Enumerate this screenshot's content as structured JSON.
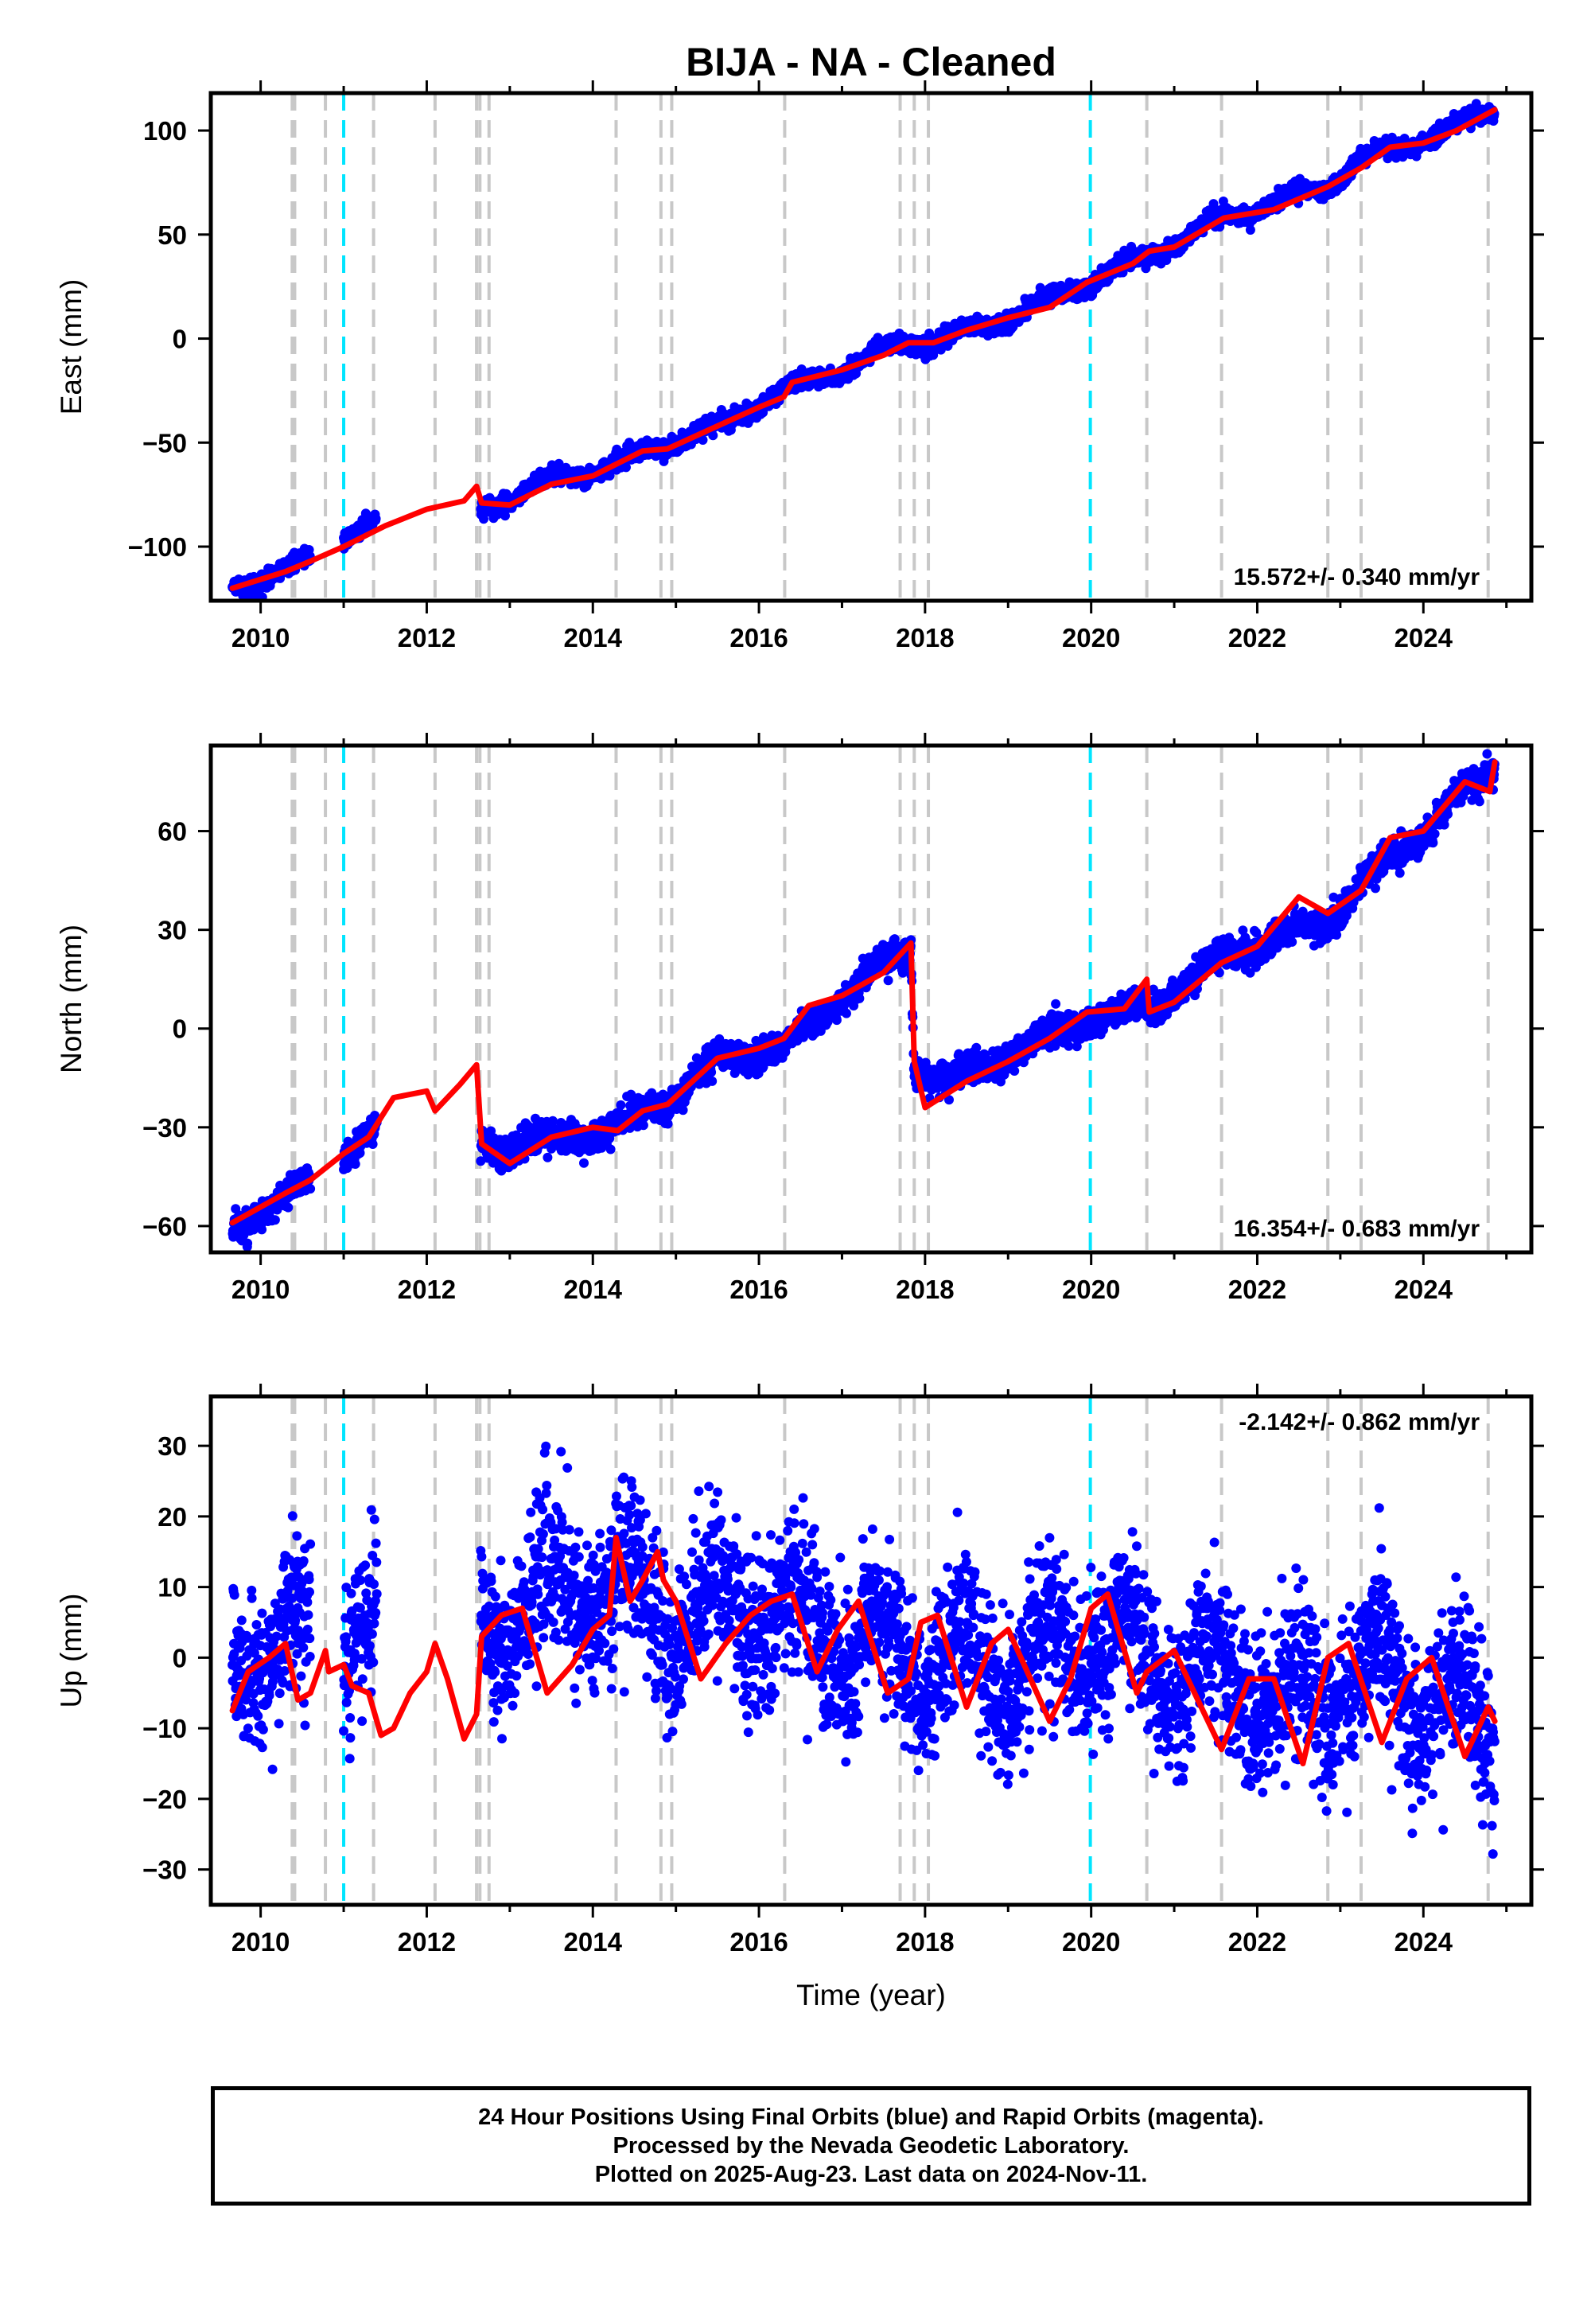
{
  "title": "BIJA  - NA - Cleaned",
  "x_axis_label": "Time (year)",
  "x_ticks": [
    "2010",
    "2012",
    "2014",
    "2016",
    "2018",
    "2020",
    "2022",
    "2024"
  ],
  "colors": {
    "data_points": "#0000ff",
    "model_line": "#ff0000",
    "event_lines": "#c8c8c8",
    "cyan_lines": "#00e5ff"
  },
  "footer": {
    "line1": "24 Hour Positions Using Final Orbits (blue) and Rapid Orbits (magenta).",
    "line2": "Processed by the Nevada Geodetic Laboratory.",
    "line3": "Plotted on 2025-Aug-23. Last data on 2024-Nov-11."
  },
  "chart_data": [
    {
      "type": "scatter",
      "panel": "east",
      "ylabel": "East (mm)",
      "xlim": [
        2009.4,
        2025.3
      ],
      "ylim": [
        -126,
        118
      ],
      "y_ticks": [
        100,
        50,
        0,
        -50,
        -100
      ],
      "rate_label": "15.572+/- 0.340 mm/yr",
      "rate_position": "bottom-right",
      "grid": false,
      "event_lines_gray": [
        2010.38,
        2010.41,
        2010.78,
        2011.36,
        2012.1,
        2012.6,
        2012.64,
        2012.75,
        2014.28,
        2014.82,
        2014.95,
        2016.31,
        2017.7,
        2017.87,
        2018.04,
        2020.67,
        2021.57,
        2022.85,
        2023.25,
        2024.78
      ],
      "event_lines_cyan": [
        2011.0,
        2019.99
      ],
      "series": [
        {
          "kind": "points",
          "segments": [
            [
              2009.66,
              2010.6
            ],
            [
              2011.0,
              2011.4
            ],
            [
              2012.65,
              2024.86
            ]
          ],
          "trend": [
            [
              2009.66,
              -120
            ],
            [
              2010.6,
              -107
            ],
            [
              2011.0,
              -95
            ],
            [
              2011.4,
              -89
            ],
            [
              2012.65,
              -82
            ],
            [
              2013.5,
              -68
            ],
            [
              2014.3,
              -60
            ],
            [
              2014.9,
              -50
            ],
            [
              2015.5,
              -42
            ],
            [
              2016.3,
              -25
            ],
            [
              2017.0,
              -15
            ],
            [
              2017.7,
              -2
            ],
            [
              2018.1,
              -2
            ],
            [
              2019.0,
              10
            ],
            [
              2019.95,
              27
            ],
            [
              2020.7,
              40
            ],
            [
              2021.6,
              58
            ],
            [
              2022.85,
              73
            ],
            [
              2023.25,
              86
            ],
            [
              2023.8,
              92
            ],
            [
              2024.86,
              110
            ]
          ],
          "seasonal_amp": 2.5,
          "noise": 2.0
        },
        {
          "kind": "line",
          "name": "",
          "points": [
            [
              2009.66,
              -120
            ],
            [
              2010.3,
              -112
            ],
            [
              2010.6,
              -107
            ],
            [
              2011.0,
              -100
            ],
            [
              2011.5,
              -90
            ],
            [
              2012.0,
              -82
            ],
            [
              2012.45,
              -78
            ],
            [
              2012.6,
              -71
            ],
            [
              2012.66,
              -79
            ],
            [
              2013.0,
              -80
            ],
            [
              2013.5,
              -70
            ],
            [
              2014.0,
              -66
            ],
            [
              2014.3,
              -60
            ],
            [
              2014.6,
              -54
            ],
            [
              2014.9,
              -53
            ],
            [
              2015.5,
              -42
            ],
            [
              2016.0,
              -33
            ],
            [
              2016.3,
              -28
            ],
            [
              2016.4,
              -21
            ],
            [
              2017.0,
              -15
            ],
            [
              2017.5,
              -8
            ],
            [
              2017.8,
              -2
            ],
            [
              2018.1,
              -2
            ],
            [
              2018.5,
              4
            ],
            [
              2019.0,
              10
            ],
            [
              2019.5,
              15
            ],
            [
              2019.95,
              27
            ],
            [
              2020.5,
              36
            ],
            [
              2020.7,
              42
            ],
            [
              2021.0,
              44
            ],
            [
              2021.6,
              58
            ],
            [
              2022.2,
              62
            ],
            [
              2022.85,
              73
            ],
            [
              2023.25,
              82
            ],
            [
              2023.6,
              92
            ],
            [
              2024.0,
              94
            ],
            [
              2024.4,
              100
            ],
            [
              2024.86,
              110
            ]
          ]
        }
      ]
    },
    {
      "type": "scatter",
      "panel": "north",
      "ylabel": "North (mm)",
      "xlim": [
        2009.4,
        2025.3
      ],
      "ylim": [
        -68,
        86
      ],
      "y_ticks": [
        60,
        30,
        0,
        -30,
        -60
      ],
      "rate_label": "16.354+/- 0.683 mm/yr",
      "rate_position": "bottom-right",
      "grid": false,
      "event_lines_gray": [
        2010.38,
        2010.41,
        2010.78,
        2011.36,
        2012.1,
        2012.6,
        2012.64,
        2012.75,
        2014.28,
        2014.82,
        2014.95,
        2016.31,
        2017.7,
        2017.87,
        2018.04,
        2020.67,
        2021.57,
        2022.85,
        2023.25,
        2024.78
      ],
      "event_lines_cyan": [
        2011.0,
        2019.99
      ],
      "series": [
        {
          "kind": "points",
          "segments": [
            [
              2009.66,
              2010.6
            ],
            [
              2011.0,
              2011.4
            ],
            [
              2012.65,
              2024.86
            ]
          ],
          "trend": [
            [
              2009.66,
              -61
            ],
            [
              2010.6,
              -46
            ],
            [
              2011.0,
              -38
            ],
            [
              2011.4,
              -31
            ],
            [
              2012.65,
              -36
            ],
            [
              2013.5,
              -34
            ],
            [
              2014.3,
              -30
            ],
            [
              2014.9,
              -22
            ],
            [
              2015.5,
              -9
            ],
            [
              2016.3,
              -6
            ],
            [
              2017.0,
              10
            ],
            [
              2017.83,
              25
            ],
            [
              2017.87,
              -12
            ],
            [
              2018.3,
              -16
            ],
            [
              2019.0,
              -8
            ],
            [
              2019.95,
              3
            ],
            [
              2020.7,
              6
            ],
            [
              2021.6,
              22
            ],
            [
              2022.85,
              32
            ],
            [
              2023.25,
              44
            ],
            [
              2024.0,
              60
            ],
            [
              2024.86,
              80
            ]
          ],
          "seasonal_amp": 2.0,
          "noise": 2.2
        },
        {
          "kind": "line",
          "name": "",
          "points": [
            [
              2009.66,
              -59
            ],
            [
              2010.3,
              -50
            ],
            [
              2010.6,
              -46
            ],
            [
              2011.0,
              -38
            ],
            [
              2011.3,
              -33
            ],
            [
              2011.6,
              -21
            ],
            [
              2012.0,
              -19
            ],
            [
              2012.1,
              -25
            ],
            [
              2012.4,
              -17
            ],
            [
              2012.6,
              -11
            ],
            [
              2012.66,
              -35
            ],
            [
              2013.0,
              -41
            ],
            [
              2013.5,
              -33
            ],
            [
              2014.0,
              -30
            ],
            [
              2014.3,
              -31
            ],
            [
              2014.6,
              -25
            ],
            [
              2014.9,
              -23
            ],
            [
              2015.5,
              -9
            ],
            [
              2016.0,
              -6
            ],
            [
              2016.3,
              -3
            ],
            [
              2016.6,
              7
            ],
            [
              2017.0,
              10
            ],
            [
              2017.5,
              17
            ],
            [
              2017.83,
              26
            ],
            [
              2017.87,
              -10
            ],
            [
              2018.0,
              -24
            ],
            [
              2018.5,
              -16
            ],
            [
              2019.0,
              -10
            ],
            [
              2019.5,
              -3
            ],
            [
              2019.95,
              5
            ],
            [
              2020.4,
              6
            ],
            [
              2020.67,
              15
            ],
            [
              2020.7,
              5
            ],
            [
              2021.0,
              8
            ],
            [
              2021.57,
              20
            ],
            [
              2022.0,
              25
            ],
            [
              2022.5,
              40
            ],
            [
              2022.85,
              35
            ],
            [
              2023.25,
              42
            ],
            [
              2023.6,
              58
            ],
            [
              2024.0,
              60
            ],
            [
              2024.5,
              75
            ],
            [
              2024.8,
              72
            ],
            [
              2024.86,
              81
            ]
          ]
        }
      ]
    },
    {
      "type": "scatter",
      "panel": "up",
      "ylabel": "Up (mm)",
      "xlim": [
        2009.4,
        2025.3
      ],
      "ylim": [
        -35,
        37
      ],
      "y_ticks": [
        30,
        20,
        10,
        0,
        -10,
        -20,
        -30
      ],
      "rate_label": "-2.142+/- 0.862 mm/yr",
      "rate_position": "top-right",
      "grid": false,
      "event_lines_gray": [
        2010.38,
        2010.41,
        2010.78,
        2011.36,
        2012.1,
        2012.6,
        2012.64,
        2012.75,
        2014.28,
        2014.82,
        2014.95,
        2016.31,
        2017.7,
        2017.87,
        2018.04,
        2020.67,
        2021.57,
        2022.85,
        2023.25,
        2024.78
      ],
      "event_lines_cyan": [
        2011.0,
        2019.99
      ],
      "series": [
        {
          "kind": "points",
          "segments": [
            [
              2009.66,
              2010.6
            ],
            [
              2011.0,
              2011.4
            ],
            [
              2012.65,
              2024.86
            ]
          ],
          "trend": [
            [
              2009.66,
              1
            ],
            [
              2012.65,
              6
            ],
            [
              2014.2,
              10
            ],
            [
              2015.0,
              6
            ],
            [
              2016.0,
              8
            ],
            [
              2017.0,
              2
            ],
            [
              2018.0,
              0
            ],
            [
              2019.0,
              -2
            ],
            [
              2020.0,
              3
            ],
            [
              2021.0,
              -2
            ],
            [
              2022.0,
              -4
            ],
            [
              2022.5,
              -8
            ],
            [
              2023.0,
              -2
            ],
            [
              2024.0,
              -4
            ],
            [
              2024.86,
              -12
            ]
          ],
          "seasonal_amp": 5.5,
          "noise": 5.5
        },
        {
          "kind": "line",
          "name": "",
          "points": [
            [
              2009.66,
              -7.5
            ],
            [
              2009.85,
              -2
            ],
            [
              2010.1,
              0
            ],
            [
              2010.3,
              2
            ],
            [
              2010.45,
              -6
            ],
            [
              2010.6,
              -5
            ],
            [
              2010.78,
              1
            ],
            [
              2010.82,
              -2
            ],
            [
              2011.0,
              -1
            ],
            [
              2011.1,
              -4
            ],
            [
              2011.3,
              -5
            ],
            [
              2011.45,
              -11
            ],
            [
              2011.6,
              -10
            ],
            [
              2011.8,
              -5
            ],
            [
              2012.0,
              -2
            ],
            [
              2012.1,
              2
            ],
            [
              2012.25,
              -3
            ],
            [
              2012.45,
              -11.5
            ],
            [
              2012.6,
              -8
            ],
            [
              2012.66,
              3
            ],
            [
              2012.9,
              6
            ],
            [
              2013.15,
              7
            ],
            [
              2013.45,
              -5
            ],
            [
              2013.75,
              -1
            ],
            [
              2014.0,
              4
            ],
            [
              2014.2,
              6
            ],
            [
              2014.28,
              17
            ],
            [
              2014.45,
              8
            ],
            [
              2014.6,
              11
            ],
            [
              2014.78,
              15
            ],
            [
              2014.85,
              11
            ],
            [
              2015.0,
              8
            ],
            [
              2015.3,
              -3
            ],
            [
              2015.6,
              2
            ],
            [
              2015.9,
              6
            ],
            [
              2016.15,
              8
            ],
            [
              2016.4,
              9
            ],
            [
              2016.7,
              -2
            ],
            [
              2016.95,
              4
            ],
            [
              2017.2,
              8
            ],
            [
              2017.55,
              -5
            ],
            [
              2017.8,
              -3
            ],
            [
              2017.95,
              5
            ],
            [
              2018.15,
              6
            ],
            [
              2018.5,
              -7
            ],
            [
              2018.8,
              2
            ],
            [
              2019.0,
              4
            ],
            [
              2019.5,
              -9
            ],
            [
              2019.75,
              -3
            ],
            [
              2020.0,
              7
            ],
            [
              2020.2,
              9
            ],
            [
              2020.55,
              -5
            ],
            [
              2020.67,
              -2
            ],
            [
              2021.0,
              1
            ],
            [
              2021.57,
              -13
            ],
            [
              2021.9,
              -3
            ],
            [
              2022.2,
              -3
            ],
            [
              2022.55,
              -15
            ],
            [
              2022.85,
              0
            ],
            [
              2023.1,
              2
            ],
            [
              2023.5,
              -12
            ],
            [
              2023.8,
              -3
            ],
            [
              2024.1,
              0
            ],
            [
              2024.5,
              -14
            ],
            [
              2024.78,
              -7
            ],
            [
              2024.86,
              -9
            ]
          ]
        }
      ]
    }
  ]
}
